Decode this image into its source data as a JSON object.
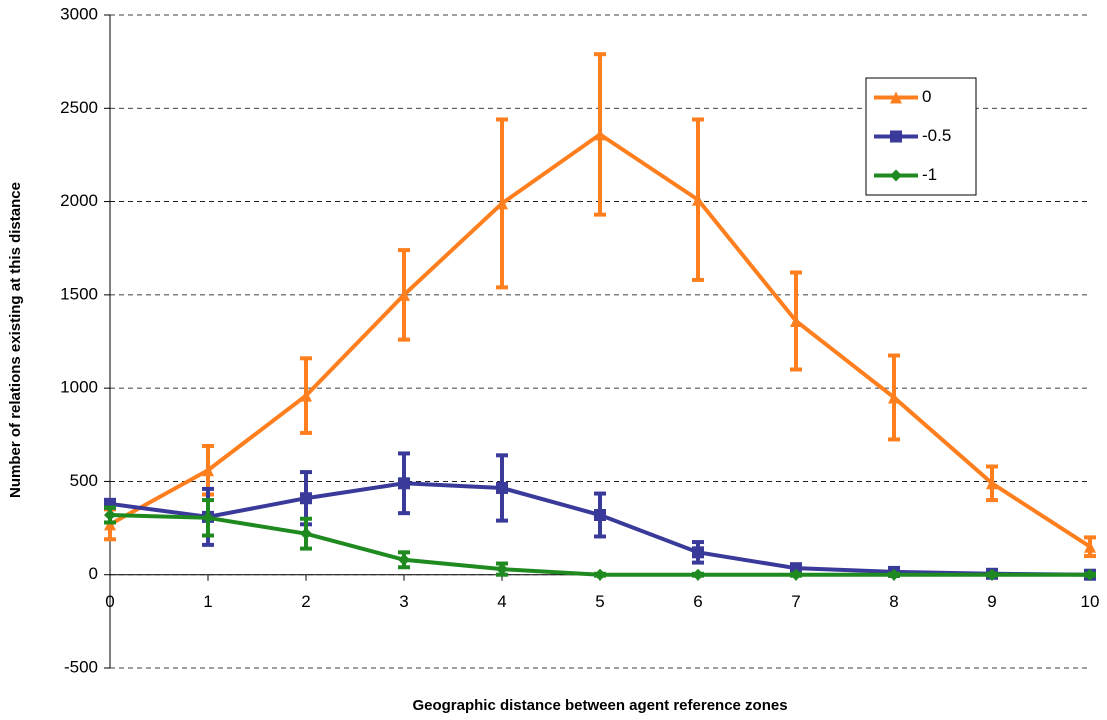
{
  "chart_data": {
    "type": "line",
    "x_label": "Geographic distance between agent reference zones",
    "y_label": "Number of relations existing at this distance",
    "x": [
      0,
      1,
      2,
      3,
      4,
      5,
      6,
      7,
      8,
      9,
      10
    ],
    "xlim": [
      0,
      10
    ],
    "xticks": [
      0,
      1,
      2,
      3,
      4,
      5,
      6,
      7,
      8,
      9,
      10
    ],
    "ylim": [
      -500,
      3000
    ],
    "yticks": [
      -500,
      0,
      500,
      1000,
      1500,
      2000,
      2500,
      3000
    ],
    "grid": true,
    "legend": "upper right",
    "series": [
      {
        "name": "0",
        "color": "#ff7f1e",
        "marker": "triangle",
        "values": [
          270,
          560,
          960,
          1500,
          1990,
          2360,
          2010,
          1360,
          950,
          490,
          150
        ],
        "errors": [
          80,
          130,
          200,
          240,
          450,
          430,
          430,
          260,
          225,
          90,
          50
        ]
      },
      {
        "name": "-0.5",
        "color": "#3a3a9a",
        "marker": "square",
        "values": [
          380,
          310,
          410,
          490,
          465,
          320,
          120,
          35,
          15,
          5,
          0
        ],
        "errors": [
          20,
          150,
          140,
          160,
          175,
          115,
          55,
          15,
          10,
          5,
          5
        ]
      },
      {
        "name": "-1",
        "color": "#1f8a1f",
        "marker": "diamond",
        "values": [
          320,
          305,
          220,
          80,
          30,
          0,
          0,
          0,
          0,
          0,
          0
        ],
        "errors": [
          40,
          95,
          80,
          40,
          30,
          5,
          5,
          5,
          5,
          5,
          5
        ]
      }
    ]
  }
}
